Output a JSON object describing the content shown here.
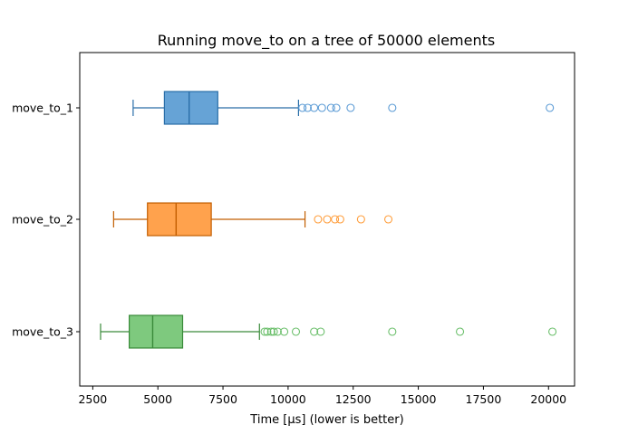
{
  "chart_data": {
    "type": "boxplot",
    "orientation": "horizontal",
    "title": "Running move_to on a tree of 50000 elements",
    "xlabel": "Time [µs] (lower is better)",
    "ylabel": "",
    "xlim": [
      2000,
      21000
    ],
    "xticks": [
      2500,
      5000,
      7500,
      10000,
      12500,
      15000,
      17500,
      20000
    ],
    "xtick_labels": [
      "2500",
      "5000",
      "7500",
      "10000",
      "12500",
      "15000",
      "17500",
      "20000"
    ],
    "grid": false,
    "categories": [
      "move_to_1",
      "move_to_2",
      "move_to_3"
    ],
    "series": [
      {
        "name": "move_to_1",
        "whisker_low": 4050,
        "q1": 5250,
        "median": 6200,
        "q3": 7300,
        "whisker_high": 10400,
        "outliers": [
          10550,
          10750,
          11000,
          11300,
          11650,
          11850,
          12400,
          14000,
          20050
        ],
        "face_color": "#66a3d6",
        "edge_color": "#2a6ea8",
        "outlier_color": "#5b9bd5"
      },
      {
        "name": "move_to_2",
        "whisker_low": 3300,
        "q1": 4600,
        "median": 5700,
        "q3": 7050,
        "whisker_high": 10650,
        "outliers": [
          11150,
          11500,
          11800,
          12000,
          12800,
          13850
        ],
        "face_color": "#ffa24d",
        "edge_color": "#c25e00",
        "outlier_color": "#ff9d3a"
      },
      {
        "name": "move_to_3",
        "whisker_low": 2800,
        "q1": 3900,
        "median": 4800,
        "q3": 5950,
        "whisker_high": 8900,
        "outliers": [
          9100,
          9200,
          9350,
          9450,
          9600,
          9850,
          10300,
          11000,
          11250,
          14000,
          16600,
          20150
        ],
        "face_color": "#7ec97e",
        "edge_color": "#3a8a3a",
        "outlier_color": "#6bbf6b"
      }
    ]
  }
}
